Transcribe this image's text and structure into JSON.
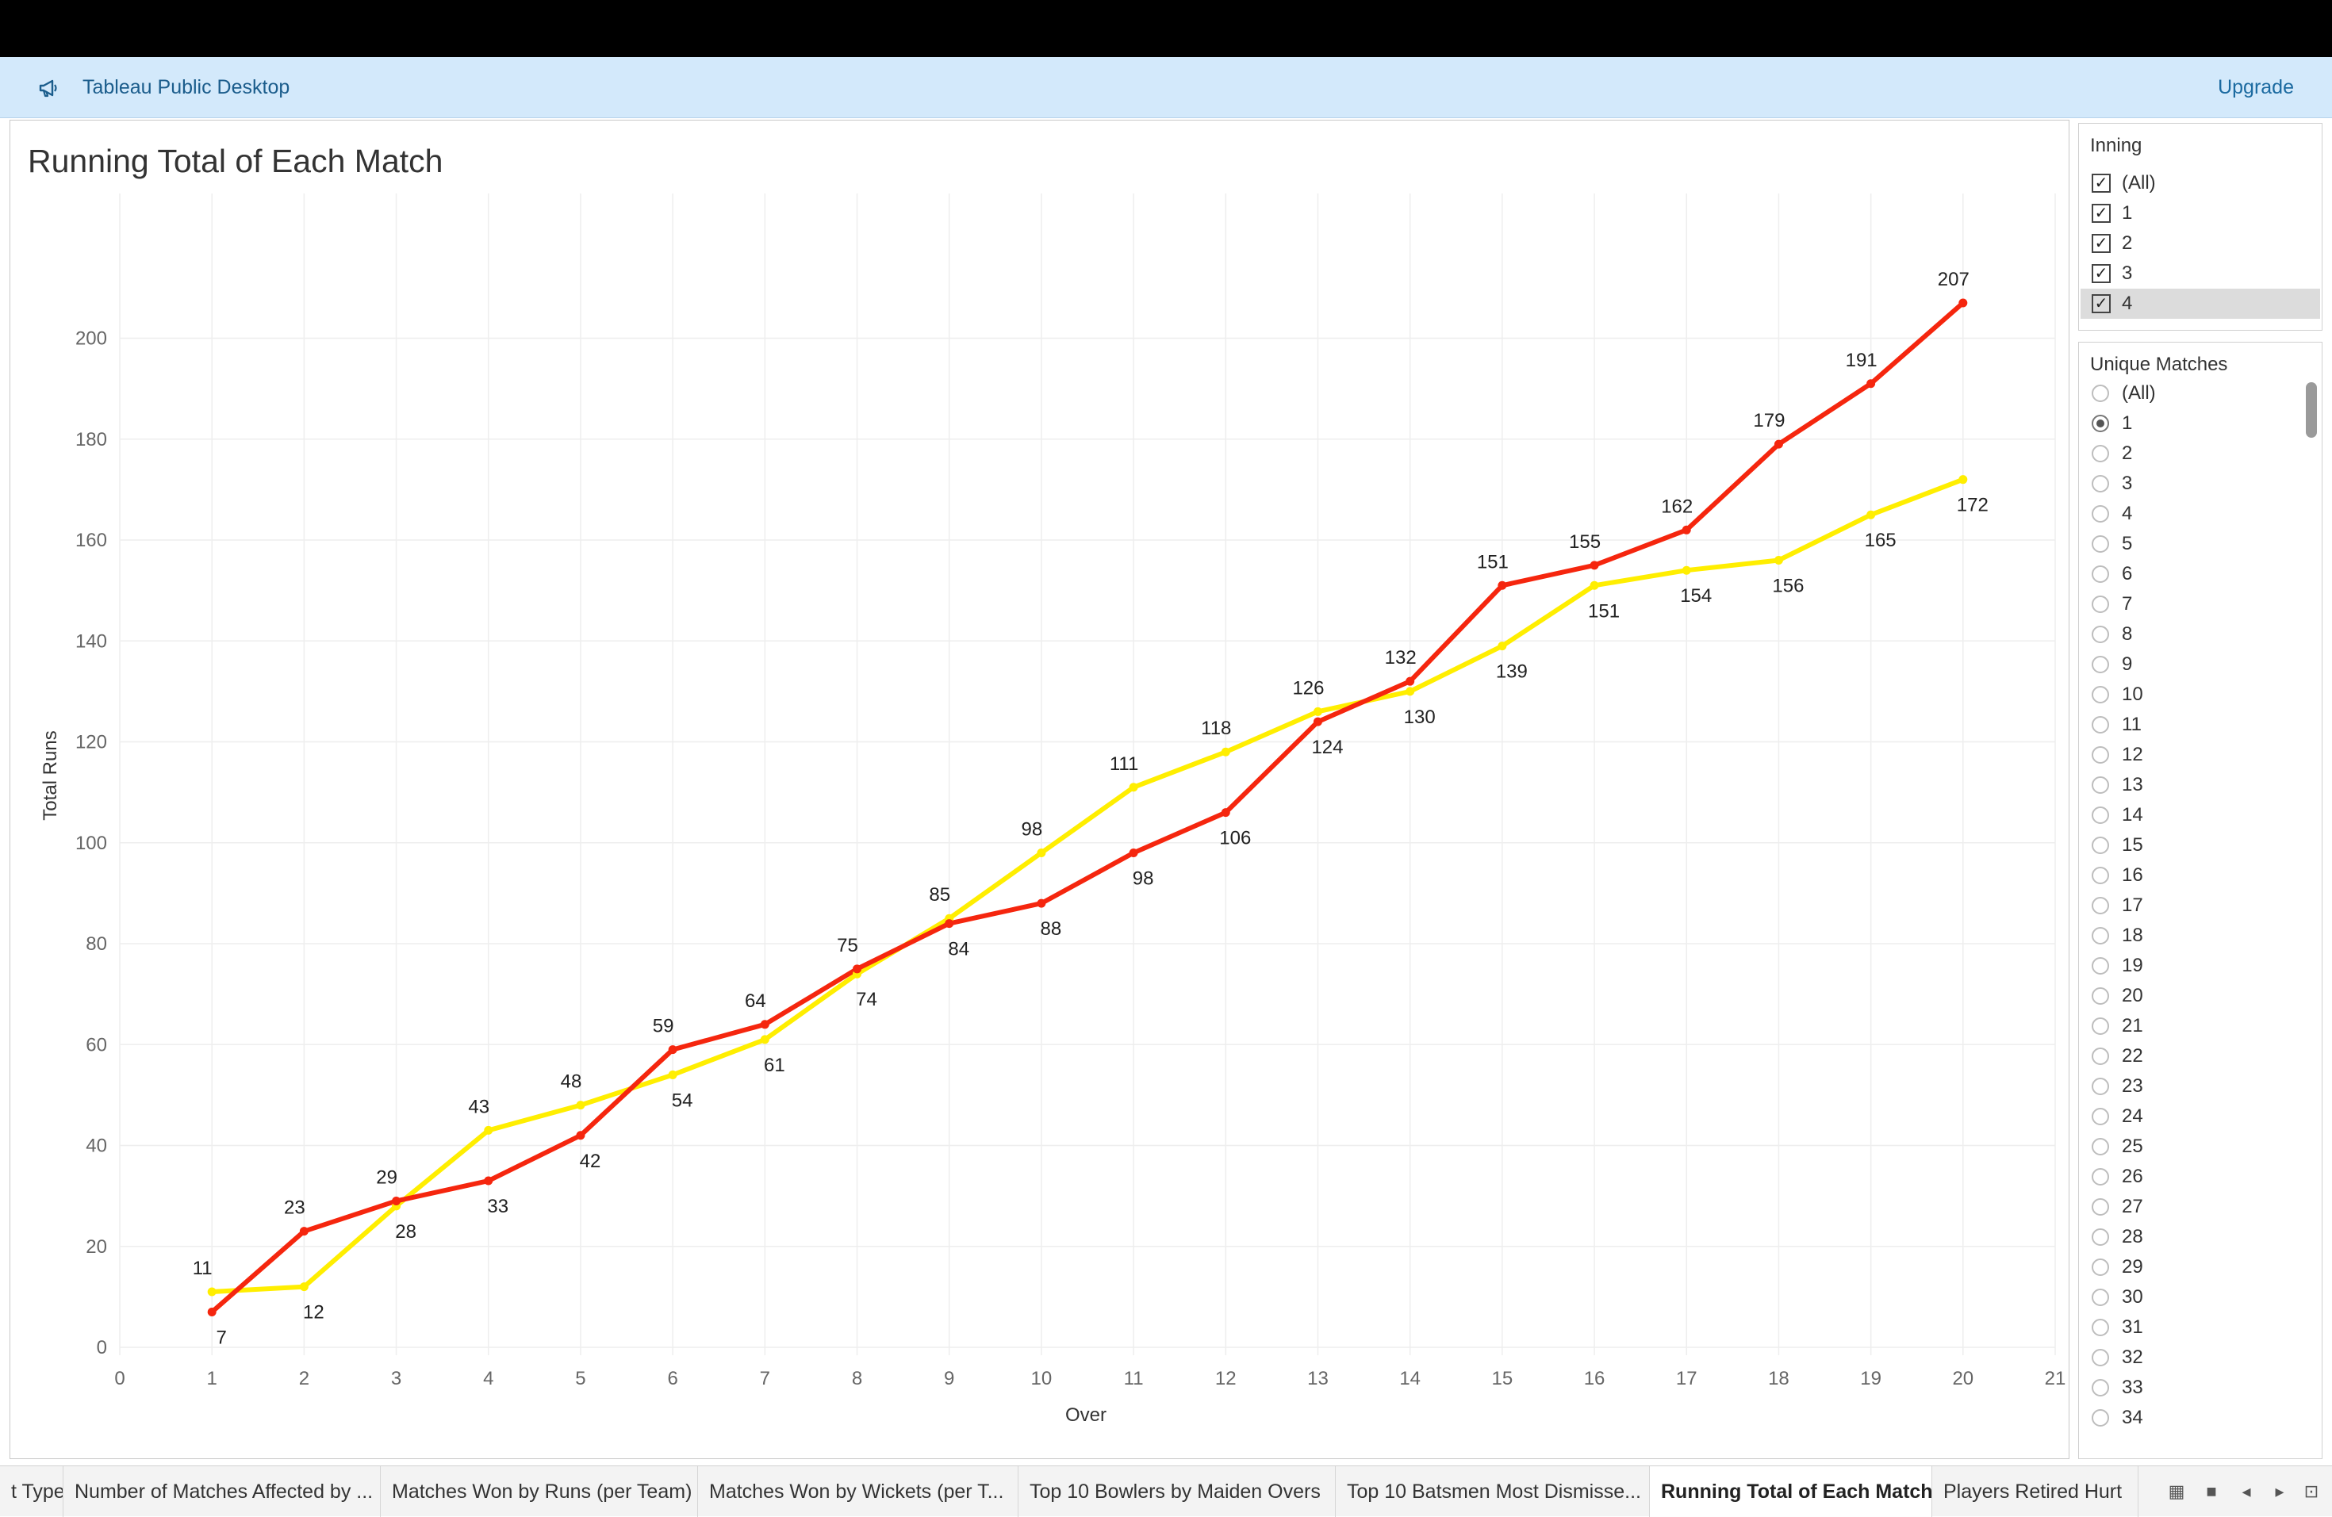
{
  "banner": {
    "app_name": "Tableau Public Desktop",
    "upgrade_label": "Upgrade"
  },
  "viz": {
    "title": "Running Total of Each Match"
  },
  "chart_data": {
    "type": "line",
    "xlabel": "Over",
    "ylabel": "Total Runs",
    "xlim": [
      0,
      21
    ],
    "ylim": [
      0,
      207
    ],
    "x_ticks": [
      "0",
      "1",
      "2",
      "3",
      "4",
      "5",
      "6",
      "7",
      "8",
      "9",
      "10",
      "11",
      "12",
      "13",
      "14",
      "15",
      "16",
      "17",
      "18",
      "19",
      "20",
      "21"
    ],
    "y_ticks": [
      "0",
      "20",
      "40",
      "60",
      "80",
      "100",
      "120",
      "140",
      "160",
      "180",
      "200"
    ],
    "grid": true,
    "x": [
      1,
      2,
      3,
      4,
      5,
      6,
      7,
      8,
      9,
      10,
      11,
      12,
      13,
      14,
      15,
      16,
      17,
      18,
      19,
      20
    ],
    "series": [
      {
        "color": "#ffee00",
        "values": [
          11,
          12,
          28,
          43,
          48,
          54,
          61,
          74,
          85,
          98,
          111,
          118,
          126,
          130,
          139,
          151,
          154,
          156,
          165,
          172
        ],
        "labels": [
          "11",
          "12",
          "28",
          "43",
          "48",
          "54",
          "61",
          "74",
          "85",
          "98",
          "111",
          "118",
          "126",
          "130",
          "139",
          "151",
          "154",
          "156",
          "165",
          "172"
        ]
      },
      {
        "color": "#f5260e",
        "values": [
          7,
          23,
          29,
          33,
          42,
          59,
          64,
          75,
          84,
          88,
          98,
          106,
          124,
          132,
          151,
          155,
          162,
          179,
          191,
          207
        ],
        "labels": [
          "7",
          "23",
          "29",
          "33",
          "42",
          "59",
          "64",
          "75",
          "84",
          "88",
          "98",
          "106",
          "124",
          "132",
          "151",
          "155",
          "162",
          "179",
          "191",
          "207"
        ]
      }
    ]
  },
  "inning_filter": {
    "title": "Inning",
    "items": [
      {
        "label": "(All)",
        "checked": "✓"
      },
      {
        "label": "1",
        "checked": "✓"
      },
      {
        "label": "2",
        "checked": "✓"
      },
      {
        "label": "3",
        "checked": "✓"
      },
      {
        "label": "4",
        "checked": "✓"
      }
    ]
  },
  "matches_filter": {
    "title": "Unique Matches",
    "selected": "1",
    "items": [
      "(All)",
      "1",
      "2",
      "3",
      "4",
      "5",
      "6",
      "7",
      "8",
      "9",
      "10",
      "11",
      "12",
      "13",
      "14",
      "15",
      "16",
      "17",
      "18",
      "19",
      "20",
      "21",
      "22",
      "23",
      "24",
      "25",
      "26",
      "27",
      "28",
      "29",
      "30",
      "31",
      "32",
      "33",
      "34"
    ]
  },
  "tabs": [
    {
      "label": "t Type"
    },
    {
      "label": "Number of Matches Affected by ..."
    },
    {
      "label": "Matches Won by Runs (per Team)"
    },
    {
      "label": "Matches Won by Wickets (per T..."
    },
    {
      "label": "Top 10 Bowlers by Maiden Overs"
    },
    {
      "label": "Top 10 Batsmen Most Dismisse..."
    },
    {
      "label": "Running Total of Each Match"
    },
    {
      "label": "Players Retired Hurt"
    }
  ],
  "colors": {
    "banner": "#d3e9fb",
    "accent_link": "#1b6aa0"
  }
}
